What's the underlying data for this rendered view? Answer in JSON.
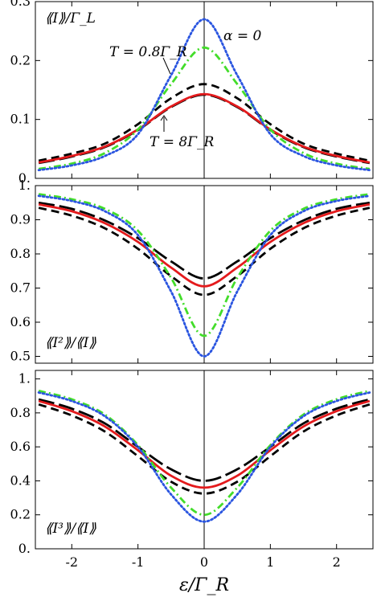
{
  "colors": {
    "blue_dotted": "#2a55e0",
    "green_dashdot": "#43dd2a",
    "red_solid": "#e41a1c",
    "black": "#000000"
  },
  "line_styles": [
    "dotted",
    "dash-dot",
    "solid",
    "dashed",
    "long-dashed"
  ],
  "chart_data": [
    {
      "type": "line",
      "panel_label": "⟪I⟫/Γ_L",
      "ylim": [
        0,
        0.3
      ],
      "y_ticks": [
        "0.",
        "0.1",
        "0.2",
        "0.3"
      ],
      "annotations": [
        "T = 0.8Γ_R",
        "α = 0",
        "T = 8Γ_R"
      ],
      "x": [
        -2.5,
        -2.0,
        -1.5,
        -1.0,
        -0.5,
        0.0,
        0.5,
        1.0,
        1.5,
        2.0,
        2.5
      ],
      "series": [
        {
          "style": "dotted",
          "color": "#2a55e0",
          "values": [
            0.014,
            0.022,
            0.038,
            0.075,
            0.175,
            0.27,
            0.175,
            0.075,
            0.038,
            0.022,
            0.014
          ]
        },
        {
          "style": "dash-dot",
          "color": "#43dd2a",
          "values": [
            0.016,
            0.025,
            0.043,
            0.083,
            0.16,
            0.222,
            0.16,
            0.083,
            0.043,
            0.025,
            0.016
          ]
        },
        {
          "style": "solid",
          "color": "#e41a1c",
          "values": [
            0.027,
            0.038,
            0.054,
            0.083,
            0.122,
            0.143,
            0.122,
            0.083,
            0.054,
            0.038,
            0.027
          ]
        },
        {
          "style": "dashed",
          "color": "#000000",
          "values": [
            0.03,
            0.042,
            0.059,
            0.092,
            0.136,
            0.16,
            0.136,
            0.092,
            0.059,
            0.042,
            0.03
          ]
        },
        {
          "style": "long-dashed",
          "color": "#000000",
          "values": [
            0.026,
            0.037,
            0.053,
            0.082,
            0.121,
            0.142,
            0.121,
            0.082,
            0.053,
            0.037,
            0.026
          ]
        }
      ]
    },
    {
      "type": "line",
      "panel_label": "⟪I²⟫/⟪I⟫",
      "ylim": [
        0.48,
        1.0
      ],
      "y_ticks": [
        "0.5",
        "0.6",
        "0.7",
        "0.8",
        "0.9",
        "1."
      ],
      "x": [
        -2.5,
        -2.0,
        -1.5,
        -1.0,
        -0.5,
        0.0,
        0.5,
        1.0,
        1.5,
        2.0,
        2.5
      ],
      "series": [
        {
          "style": "dotted",
          "color": "#2a55e0",
          "values": [
            0.97,
            0.955,
            0.925,
            0.855,
            0.69,
            0.5,
            0.69,
            0.855,
            0.925,
            0.955,
            0.97
          ]
        },
        {
          "style": "dash-dot",
          "color": "#43dd2a",
          "values": [
            0.975,
            0.96,
            0.932,
            0.868,
            0.73,
            0.56,
            0.73,
            0.868,
            0.932,
            0.96,
            0.975
          ]
        },
        {
          "style": "solid",
          "color": "#e41a1c",
          "values": [
            0.945,
            0.925,
            0.89,
            0.835,
            0.76,
            0.705,
            0.76,
            0.835,
            0.89,
            0.925,
            0.945
          ]
        },
        {
          "style": "dashed",
          "color": "#000000",
          "values": [
            0.935,
            0.912,
            0.875,
            0.815,
            0.735,
            0.68,
            0.735,
            0.815,
            0.875,
            0.912,
            0.935
          ]
        },
        {
          "style": "long-dashed",
          "color": "#000000",
          "values": [
            0.95,
            0.932,
            0.898,
            0.846,
            0.778,
            0.728,
            0.778,
            0.846,
            0.898,
            0.932,
            0.95
          ]
        }
      ]
    },
    {
      "type": "line",
      "panel_label": "⟪I³⟫/⟪I⟫",
      "ylim": [
        0.0,
        1.05
      ],
      "y_ticks": [
        "0.",
        "0.2",
        "0.4",
        "0.6",
        "0.8",
        "1."
      ],
      "x": [
        -2.5,
        -2.0,
        -1.5,
        -1.0,
        -0.5,
        0.0,
        0.5,
        1.0,
        1.5,
        2.0,
        2.5
      ],
      "series": [
        {
          "style": "dotted",
          "color": "#2a55e0",
          "values": [
            0.92,
            0.87,
            0.78,
            0.6,
            0.32,
            0.16,
            0.32,
            0.6,
            0.78,
            0.87,
            0.92
          ]
        },
        {
          "style": "dash-dot",
          "color": "#43dd2a",
          "values": [
            0.93,
            0.88,
            0.79,
            0.61,
            0.36,
            0.2,
            0.36,
            0.61,
            0.79,
            0.88,
            0.93
          ]
        },
        {
          "style": "solid",
          "color": "#e41a1c",
          "values": [
            0.87,
            0.81,
            0.72,
            0.58,
            0.43,
            0.36,
            0.43,
            0.58,
            0.72,
            0.81,
            0.87
          ]
        },
        {
          "style": "dashed",
          "color": "#000000",
          "values": [
            0.85,
            0.785,
            0.69,
            0.545,
            0.395,
            0.325,
            0.395,
            0.545,
            0.69,
            0.785,
            0.85
          ]
        },
        {
          "style": "long-dashed",
          "color": "#000000",
          "values": [
            0.88,
            0.825,
            0.738,
            0.6,
            0.468,
            0.4,
            0.468,
            0.6,
            0.738,
            0.825,
            0.88
          ]
        }
      ]
    }
  ],
  "x_axis": {
    "xlim": [
      -2.55,
      2.55
    ],
    "ticks": [
      "-2",
      "-1",
      "0",
      "1",
      "2"
    ],
    "tick_values": [
      -2,
      -1,
      0,
      1,
      2
    ],
    "label": "ε/Γ_R"
  }
}
